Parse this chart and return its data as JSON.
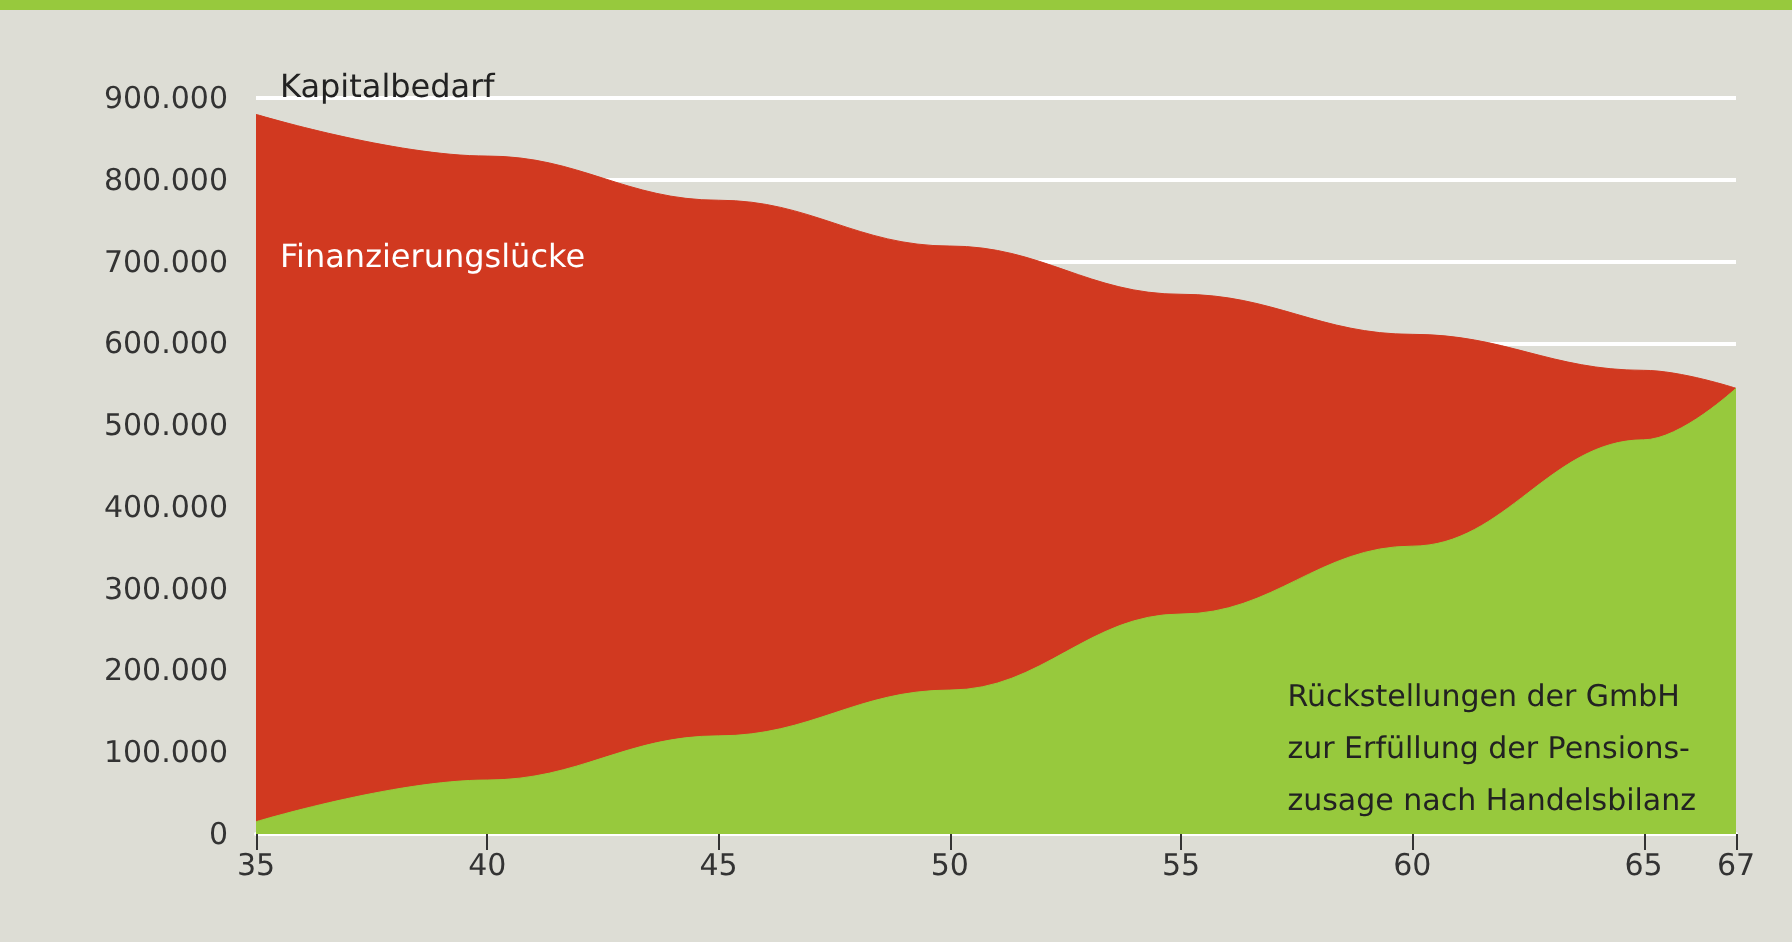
{
  "chart_data": {
    "type": "area",
    "stacked": true,
    "x": [
      35,
      40,
      45,
      50,
      55,
      60,
      65,
      67
    ],
    "series": [
      {
        "name": "Rückstellungen der GmbH\nzur Erfüllung der Pensions-\nzusage nach Handelsbilanz",
        "color": "#97c93d",
        "values": [
          15000,
          66000,
          120000,
          176000,
          269000,
          352000,
          482000,
          545000
        ]
      },
      {
        "name": "Finanzierungslücke",
        "color": "#d13920",
        "values": [
          865000,
          763000,
          655000,
          543000,
          391000,
          259000,
          85000,
          0
        ]
      }
    ],
    "annotations": [
      "Kapitalbedarf"
    ],
    "xlim": [
      35,
      67
    ],
    "xticks": [
      35,
      40,
      45,
      50,
      55,
      60,
      65,
      67
    ],
    "ylim": [
      0,
      900000
    ],
    "yticks": [
      {
        "value": 0,
        "label": "0"
      },
      {
        "value": 100000,
        "label": "100.000"
      },
      {
        "value": 200000,
        "label": "200.000"
      },
      {
        "value": 300000,
        "label": "300.000"
      },
      {
        "value": 400000,
        "label": "400.000"
      },
      {
        "value": 500000,
        "label": "500.000"
      },
      {
        "value": 600000,
        "label": "600.000"
      },
      {
        "value": 700000,
        "label": "700.000"
      },
      {
        "value": 800000,
        "label": "800.000"
      },
      {
        "value": 900000,
        "label": "900.000"
      }
    ],
    "grid": "y",
    "legend": false
  }
}
